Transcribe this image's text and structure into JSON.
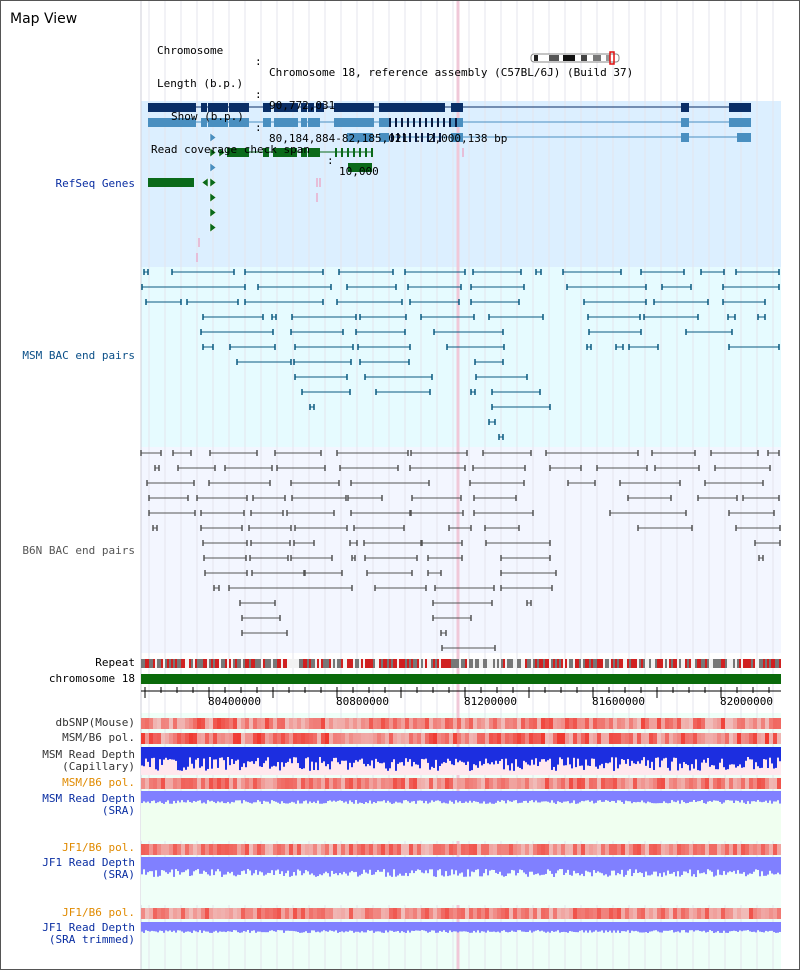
{
  "title": "Map View",
  "info": {
    "chromosome_label": "Chromosome",
    "chromosome_value": "Chromosome 18, reference assembly (C57BL/6J) (Build 37)",
    "length_label": "Length (b.p.)",
    "length_value": "90,772,031",
    "show_label": "Show (b.p.)",
    "show_value": "80,184,884-82,185,021 : 2,000,138 bp",
    "span_label": "Read coverage check span",
    "span_value": "10,000"
  },
  "tracks": {
    "refseq": "RefSeq Genes",
    "msm_bac": "MSM BAC end pairs",
    "b6n_bac": "B6N BAC end pairs",
    "repeat": "Repeat",
    "chromosome": "chromosome 18",
    "dbsnp": "dbSNP(Mouse)",
    "msm_b6_pol_1": "MSM/B6 pol.",
    "msm_read_depth_cap_1": "MSM Read Depth",
    "msm_read_depth_cap_2": "(Capillary)",
    "msm_b6_pol_2": "MSM/B6 pol.",
    "msm_read_depth_sra_1": "MSM Read Depth",
    "msm_read_depth_sra_2": "(SRA)",
    "jf1_b6_pol_1": "JF1/B6 pol.",
    "jf1_read_depth_sra_1": "JF1 Read Depth",
    "jf1_read_depth_sra_2": "(SRA)",
    "jf1_b6_pol_2": "JF1/B6 pol.",
    "jf1_read_depth_trim_1": "JF1 Read Depth",
    "jf1_read_depth_trim_2": "(SRA trimmed)"
  },
  "axis": {
    "ticks": [
      "80400000",
      "80800000",
      "81200000",
      "81600000",
      "82000000"
    ]
  },
  "colors": {
    "refseq_bg": "#dcefff",
    "msm_bg": "#e6fbff",
    "b6n_bg": "#f3f6ff",
    "gene_dark": "#0a2e66",
    "gene_mid": "#4a8fc0",
    "gene_green": "#0a6a1a",
    "msm_line": "#0a5a80",
    "b6n_line": "#555555",
    "chromosome_bar": "#0a6a0a",
    "depth_blue": "#1c2ee0",
    "depth_light": "#8080ff"
  }
}
